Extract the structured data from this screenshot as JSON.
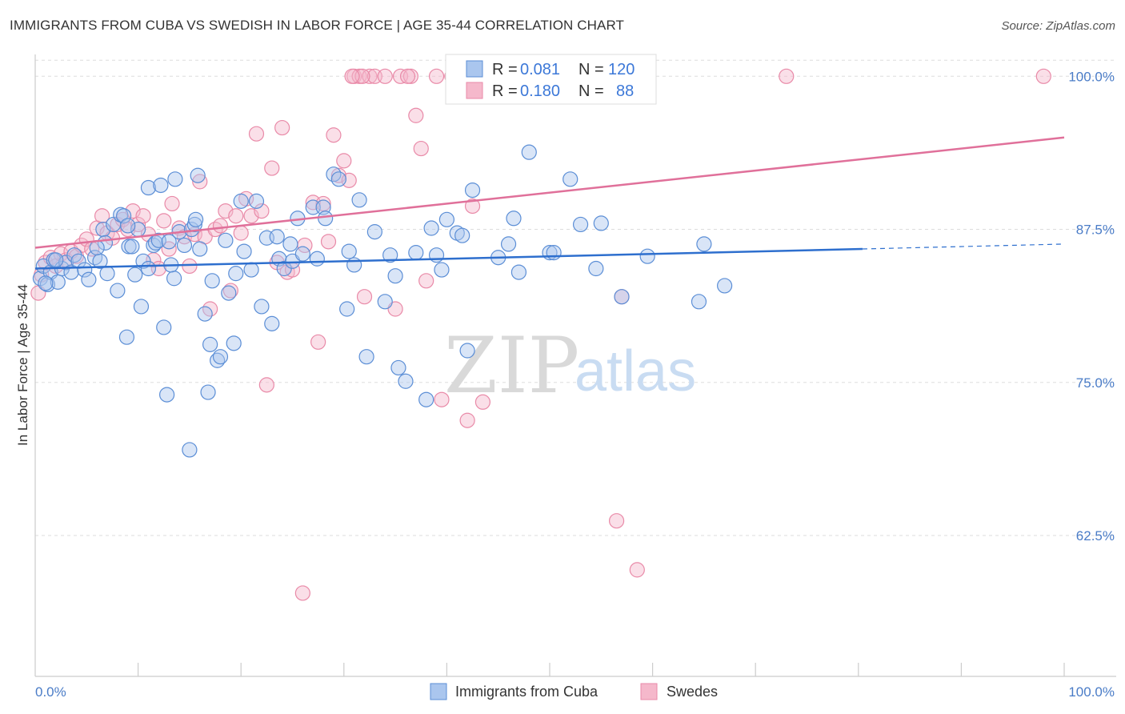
{
  "title": "IMMIGRANTS FROM CUBA VS SWEDISH IN LABOR FORCE | AGE 35-44 CORRELATION CHART",
  "source": "Source: ZipAtlas.com",
  "watermark": {
    "zip": "ZIP",
    "atlas": "atlas"
  },
  "colors": {
    "blue_fill": "#aac6ee",
    "blue_stroke": "#5b8ed6",
    "blue_line": "#2e6fce",
    "pink_fill": "#f5b8cb",
    "pink_stroke": "#e98aa8",
    "pink_line": "#e0709a",
    "tick_text": "#4a7cc7",
    "grid": "#dddddd"
  },
  "legend": {
    "rows": [
      {
        "r_label": "R =",
        "r_value": "0.081",
        "n_label": "N =",
        "n_value": "120"
      },
      {
        "r_label": "R =",
        "r_value": "0.180",
        "n_label": "N =",
        "n_value": "88"
      }
    ]
  },
  "chart_data": {
    "type": "scatter",
    "title": "IMMIGRANTS FROM CUBA VS SWEDISH IN LABOR FORCE | AGE 35-44 CORRELATION CHART",
    "xlabel": "",
    "ylabel": "In Labor Force | Age 35-44",
    "xlim": [
      0,
      100
    ],
    "ylim": [
      51,
      101
    ],
    "x_tick_labels": [
      "0.0%",
      "100.0%"
    ],
    "y_ticks": [
      62.5,
      75.0,
      87.5,
      100.0
    ],
    "y_tick_labels": [
      "62.5%",
      "75.0%",
      "87.5%",
      "100.0%"
    ],
    "grid": "horizontal dashed",
    "series": [
      {
        "name": "Immigrants from Cuba",
        "color": "#aac6ee",
        "trend": {
          "x": [
            0,
            80.4
          ],
          "y": [
            84.3,
            85.9
          ],
          "dashed_to": 100,
          "dashed_y": 86.3
        },
        "points": [
          [
            0.5,
            83.5
          ],
          [
            0.8,
            84.5
          ],
          [
            1.2,
            83.0
          ],
          [
            1.5,
            84.0
          ],
          [
            1.8,
            85.0
          ],
          [
            2.2,
            83.2
          ],
          [
            2.6,
            84.3
          ],
          [
            3.0,
            84.8
          ],
          [
            3.5,
            84.0
          ],
          [
            3.8,
            85.4
          ],
          [
            4.2,
            84.9
          ],
          [
            4.8,
            84.2
          ],
          [
            5.2,
            83.4
          ],
          [
            5.8,
            85.2
          ],
          [
            6.3,
            84.9
          ],
          [
            6.6,
            87.5
          ],
          [
            6.8,
            86.4
          ],
          [
            7.0,
            83.9
          ],
          [
            7.6,
            87.9
          ],
          [
            8.0,
            82.5
          ],
          [
            8.3,
            88.7
          ],
          [
            8.6,
            88.6
          ],
          [
            8.9,
            78.7
          ],
          [
            9.1,
            86.1
          ],
          [
            9.4,
            86.1
          ],
          [
            9.7,
            83.8
          ],
          [
            10.0,
            87.5
          ],
          [
            10.3,
            81.2
          ],
          [
            10.5,
            84.9
          ],
          [
            11.0,
            84.3
          ],
          [
            11.0,
            90.9
          ],
          [
            11.5,
            86.2
          ],
          [
            11.7,
            86.4
          ],
          [
            12.0,
            86.6
          ],
          [
            12.2,
            91.1
          ],
          [
            12.5,
            79.5
          ],
          [
            12.8,
            74.0
          ],
          [
            13.0,
            86.5
          ],
          [
            13.5,
            83.5
          ],
          [
            13.6,
            91.6
          ],
          [
            14.0,
            87.3
          ],
          [
            14.5,
            86.2
          ],
          [
            15.0,
            69.5
          ],
          [
            15.2,
            87.5
          ],
          [
            15.5,
            87.9
          ],
          [
            15.6,
            88.3
          ],
          [
            15.8,
            91.9
          ],
          [
            16.0,
            85.9
          ],
          [
            16.5,
            80.6
          ],
          [
            16.8,
            74.2
          ],
          [
            17.0,
            78.1
          ],
          [
            17.2,
            83.3
          ],
          [
            17.7,
            76.8
          ],
          [
            18.0,
            77.1
          ],
          [
            18.5,
            86.6
          ],
          [
            18.8,
            82.3
          ],
          [
            19.3,
            78.2
          ],
          [
            19.5,
            83.9
          ],
          [
            20.0,
            89.8
          ],
          [
            20.3,
            85.7
          ],
          [
            21.0,
            84.2
          ],
          [
            21.5,
            89.8
          ],
          [
            22.0,
            81.2
          ],
          [
            22.5,
            86.8
          ],
          [
            23.0,
            79.8
          ],
          [
            23.5,
            86.9
          ],
          [
            23.7,
            85.1
          ],
          [
            24.2,
            84.3
          ],
          [
            24.8,
            86.3
          ],
          [
            25.0,
            84.9
          ],
          [
            25.5,
            88.4
          ],
          [
            27.0,
            89.3
          ],
          [
            27.4,
            85.1
          ],
          [
            28.0,
            89.3
          ],
          [
            28.2,
            88.4
          ],
          [
            29.0,
            92.0
          ],
          [
            29.5,
            91.6
          ],
          [
            30.3,
            81.0
          ],
          [
            30.5,
            85.7
          ],
          [
            31.0,
            84.6
          ],
          [
            31.5,
            89.9
          ],
          [
            32.2,
            77.1
          ],
          [
            33.0,
            87.3
          ],
          [
            34.0,
            81.6
          ],
          [
            34.5,
            85.4
          ],
          [
            35.0,
            83.7
          ],
          [
            35.3,
            76.2
          ],
          [
            36.0,
            75.1
          ],
          [
            37.0,
            85.6
          ],
          [
            38.0,
            73.6
          ],
          [
            38.5,
            87.6
          ],
          [
            39.0,
            85.4
          ],
          [
            39.5,
            84.2
          ],
          [
            40.0,
            88.3
          ],
          [
            41.0,
            87.2
          ],
          [
            41.5,
            87.0
          ],
          [
            42.0,
            77.6
          ],
          [
            42.5,
            90.7
          ],
          [
            45.0,
            85.2
          ],
          [
            46.0,
            86.3
          ],
          [
            46.5,
            88.4
          ],
          [
            47.0,
            84.0
          ],
          [
            48.0,
            93.8
          ],
          [
            50.0,
            85.6
          ],
          [
            50.4,
            85.6
          ],
          [
            52.0,
            91.6
          ],
          [
            53.0,
            87.9
          ],
          [
            54.5,
            84.3
          ],
          [
            55.0,
            88.0
          ],
          [
            57.0,
            82.0
          ],
          [
            59.5,
            85.3
          ],
          [
            64.5,
            81.6
          ],
          [
            65.0,
            86.3
          ],
          [
            67.0,
            82.9
          ],
          [
            1.0,
            83.1
          ],
          [
            2.0,
            85.0
          ],
          [
            6.0,
            86.0
          ],
          [
            9.0,
            87.8
          ],
          [
            13.2,
            84.6
          ],
          [
            26.0,
            85.5
          ]
        ]
      },
      {
        "name": "Swedes",
        "color": "#f5b8cb",
        "trend": {
          "x": [
            0,
            100
          ],
          "y": [
            86.0,
            95.0
          ]
        },
        "points": [
          [
            0.3,
            82.3
          ],
          [
            0.6,
            83.8
          ],
          [
            1.0,
            84.8
          ],
          [
            1.5,
            85.2
          ],
          [
            2.0,
            84.5
          ],
          [
            2.5,
            85.5
          ],
          [
            3.0,
            85.0
          ],
          [
            3.5,
            85.7
          ],
          [
            4.0,
            85.3
          ],
          [
            4.5,
            86.2
          ],
          [
            5.0,
            86.7
          ],
          [
            5.5,
            85.9
          ],
          [
            6.0,
            87.6
          ],
          [
            6.5,
            88.6
          ],
          [
            7.0,
            87.2
          ],
          [
            7.5,
            86.8
          ],
          [
            8.0,
            87.9
          ],
          [
            8.5,
            88.3
          ],
          [
            9.0,
            87.5
          ],
          [
            9.5,
            89.0
          ],
          [
            10.0,
            87.9
          ],
          [
            10.5,
            88.6
          ],
          [
            11.0,
            87.1
          ],
          [
            11.5,
            85.0
          ],
          [
            12.0,
            84.3
          ],
          [
            12.5,
            88.2
          ],
          [
            13.0,
            85.9
          ],
          [
            13.3,
            89.6
          ],
          [
            14.0,
            87.6
          ],
          [
            14.5,
            86.9
          ],
          [
            15.0,
            84.5
          ],
          [
            15.5,
            87.1
          ],
          [
            16.0,
            91.4
          ],
          [
            16.5,
            86.9
          ],
          [
            17.0,
            81.0
          ],
          [
            17.5,
            87.5
          ],
          [
            18.0,
            87.8
          ],
          [
            18.5,
            89.0
          ],
          [
            19.0,
            82.5
          ],
          [
            19.5,
            88.6
          ],
          [
            20.0,
            87.2
          ],
          [
            20.5,
            90.0
          ],
          [
            21.0,
            88.6
          ],
          [
            21.5,
            95.3
          ],
          [
            22.0,
            89.0
          ],
          [
            22.5,
            74.8
          ],
          [
            23.0,
            92.5
          ],
          [
            23.5,
            84.8
          ],
          [
            24.0,
            95.8
          ],
          [
            24.5,
            84.0
          ],
          [
            25.0,
            84.2
          ],
          [
            26.0,
            57.8
          ],
          [
            26.2,
            86.2
          ],
          [
            27.0,
            89.7
          ],
          [
            27.5,
            78.3
          ],
          [
            28.0,
            89.6
          ],
          [
            28.5,
            86.5
          ],
          [
            29.0,
            95.2
          ],
          [
            29.5,
            91.9
          ],
          [
            30.0,
            93.1
          ],
          [
            30.5,
            91.5
          ],
          [
            31.0,
            100.0
          ],
          [
            31.5,
            100.0
          ],
          [
            32.0,
            82.0
          ],
          [
            32.5,
            100.0
          ],
          [
            33.0,
            100.0
          ],
          [
            34.0,
            100.0
          ],
          [
            35.0,
            81.0
          ],
          [
            35.5,
            100.0
          ],
          [
            36.5,
            100.0
          ],
          [
            37.0,
            96.8
          ],
          [
            37.5,
            94.1
          ],
          [
            38.0,
            83.3
          ],
          [
            39.0,
            100.0
          ],
          [
            39.5,
            73.6
          ],
          [
            40.5,
            100.0
          ],
          [
            41.5,
            100.0
          ],
          [
            42.0,
            71.9
          ],
          [
            42.5,
            89.4
          ],
          [
            43.5,
            73.4
          ],
          [
            56.5,
            63.7
          ],
          [
            57.0,
            82.0
          ],
          [
            58.5,
            59.7
          ],
          [
            73.0,
            100.0
          ],
          [
            98.0,
            100.0
          ],
          [
            36.2,
            100.0
          ],
          [
            31.8,
            100.0
          ],
          [
            30.8,
            100.0
          ]
        ]
      }
    ]
  }
}
